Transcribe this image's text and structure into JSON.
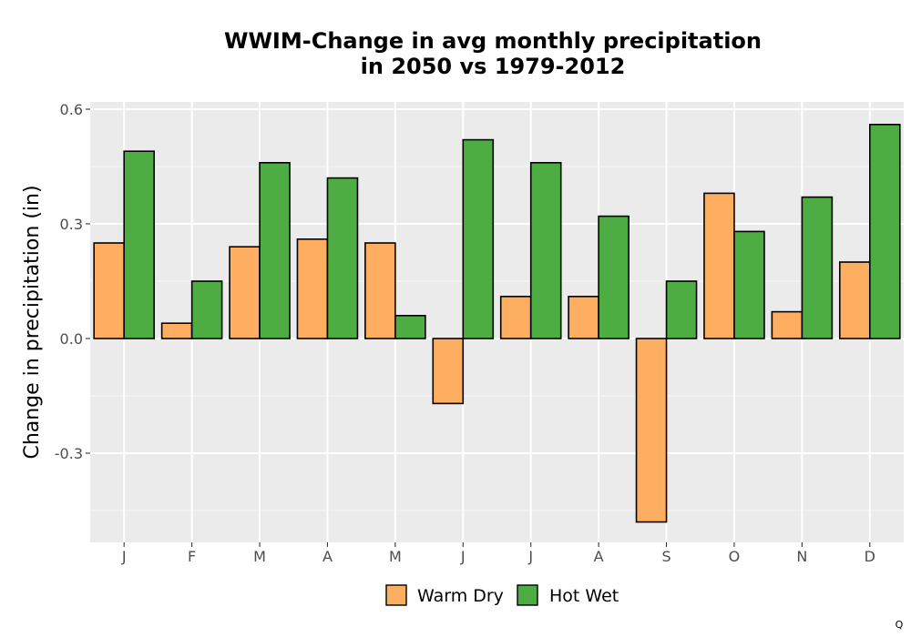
{
  "chart_data": {
    "type": "bar",
    "title_line1": "WWIM-Change in avg monthly precipitation",
    "title_line2": "in 2050 vs 1979-2012",
    "xlabel": "",
    "ylabel": "Change in precipitation (in)",
    "categories": [
      "J",
      "F",
      "M",
      "A",
      "M",
      "J",
      "J",
      "A",
      "S",
      "O",
      "N",
      "D"
    ],
    "series": [
      {
        "name": "Warm Dry",
        "color": "#FDAE61",
        "values": [
          0.25,
          0.04,
          0.24,
          0.26,
          0.25,
          -0.17,
          0.11,
          0.11,
          -0.48,
          0.38,
          0.07,
          0.2
        ]
      },
      {
        "name": "Hot Wet",
        "color": "#4DAC42",
        "values": [
          0.49,
          0.15,
          0.46,
          0.42,
          0.06,
          0.52,
          0.46,
          0.32,
          0.15,
          0.28,
          0.37,
          0.56
        ]
      }
    ],
    "ylim": [
      -0.53,
      0.62
    ],
    "yticks": [
      0.6,
      0.3,
      0.0,
      -0.3
    ],
    "ytick_labels": [
      "0.6",
      "0.3",
      "0.0",
      "-0.3"
    ],
    "grid": true,
    "legend_position": "bottom",
    "panel_background": "#EBEBEB",
    "corner_label": "Q"
  }
}
